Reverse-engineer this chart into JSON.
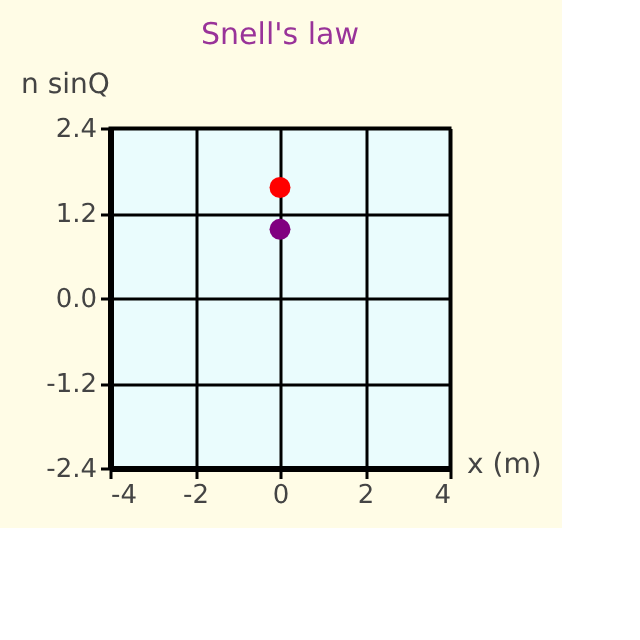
{
  "chart_data": {
    "type": "scatter",
    "title": "Snell's law",
    "xlabel": "x (m)",
    "ylabel": "n sinQ",
    "xlim": [
      -4,
      4
    ],
    "xticks": [
      -4,
      -2,
      0,
      2,
      4
    ],
    "ylim": [
      -2.4,
      2.4
    ],
    "yticks": [
      {
        "value": -2.4,
        "label": "-2.4"
      },
      {
        "value": -1.2,
        "label": "-1.2"
      },
      {
        "value": 0,
        "label": "0.0"
      },
      {
        "value": 1.2,
        "label": "1.2"
      },
      {
        "value": 2.4,
        "label": "2.4"
      }
    ],
    "grid": true,
    "legend": false,
    "marker": "circle",
    "series": [
      {
        "color": "#ff0000",
        "x": [
          0
        ],
        "values": [
          1.56
        ]
      },
      {
        "color": "#800080",
        "x": [
          0
        ],
        "values": [
          0.97
        ]
      }
    ]
  }
}
